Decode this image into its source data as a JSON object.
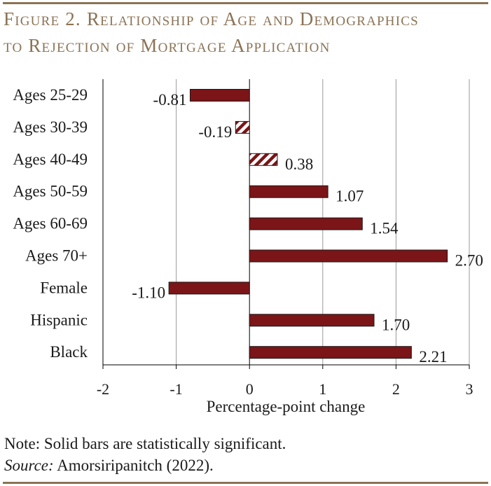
{
  "title_lines": [
    "Figure 2. Relationship of Age and Demographics",
    "to Rejection of Mortgage Application"
  ],
  "note": "Note: Solid bars are statistically significant.",
  "source_label": "Source:",
  "source_text": " Amorsiripanitch (2022).",
  "colors": {
    "bar": "#7b1518",
    "accent": "#8b7355",
    "text": "#1a1a1a",
    "grid": "#9a9a9a"
  },
  "chart_data": {
    "type": "bar",
    "orientation": "horizontal",
    "categories": [
      "Ages 25-29",
      "Ages 30-39",
      "Ages 40-49",
      "Ages 50-59",
      "Ages 60-69",
      "Ages 70+",
      "Female",
      "Hispanic",
      "Black"
    ],
    "values": [
      -0.81,
      -0.19,
      0.38,
      1.07,
      1.54,
      2.7,
      -1.1,
      1.7,
      2.21
    ],
    "value_labels": [
      "-0.81",
      "-0.19",
      "0.38",
      "1.07",
      "1.54",
      "2.70",
      "-1.10",
      "1.70",
      "2.21"
    ],
    "significant": [
      true,
      false,
      false,
      true,
      true,
      true,
      true,
      true,
      true
    ],
    "xlabel": "Percentage-point change",
    "xlim": [
      -2,
      3
    ],
    "xticks": [
      -2,
      -1,
      0,
      1,
      2,
      3
    ],
    "xtick_labels": [
      "-2",
      "-1",
      "0",
      "1",
      "2",
      "3"
    ],
    "grid": "vertical"
  }
}
